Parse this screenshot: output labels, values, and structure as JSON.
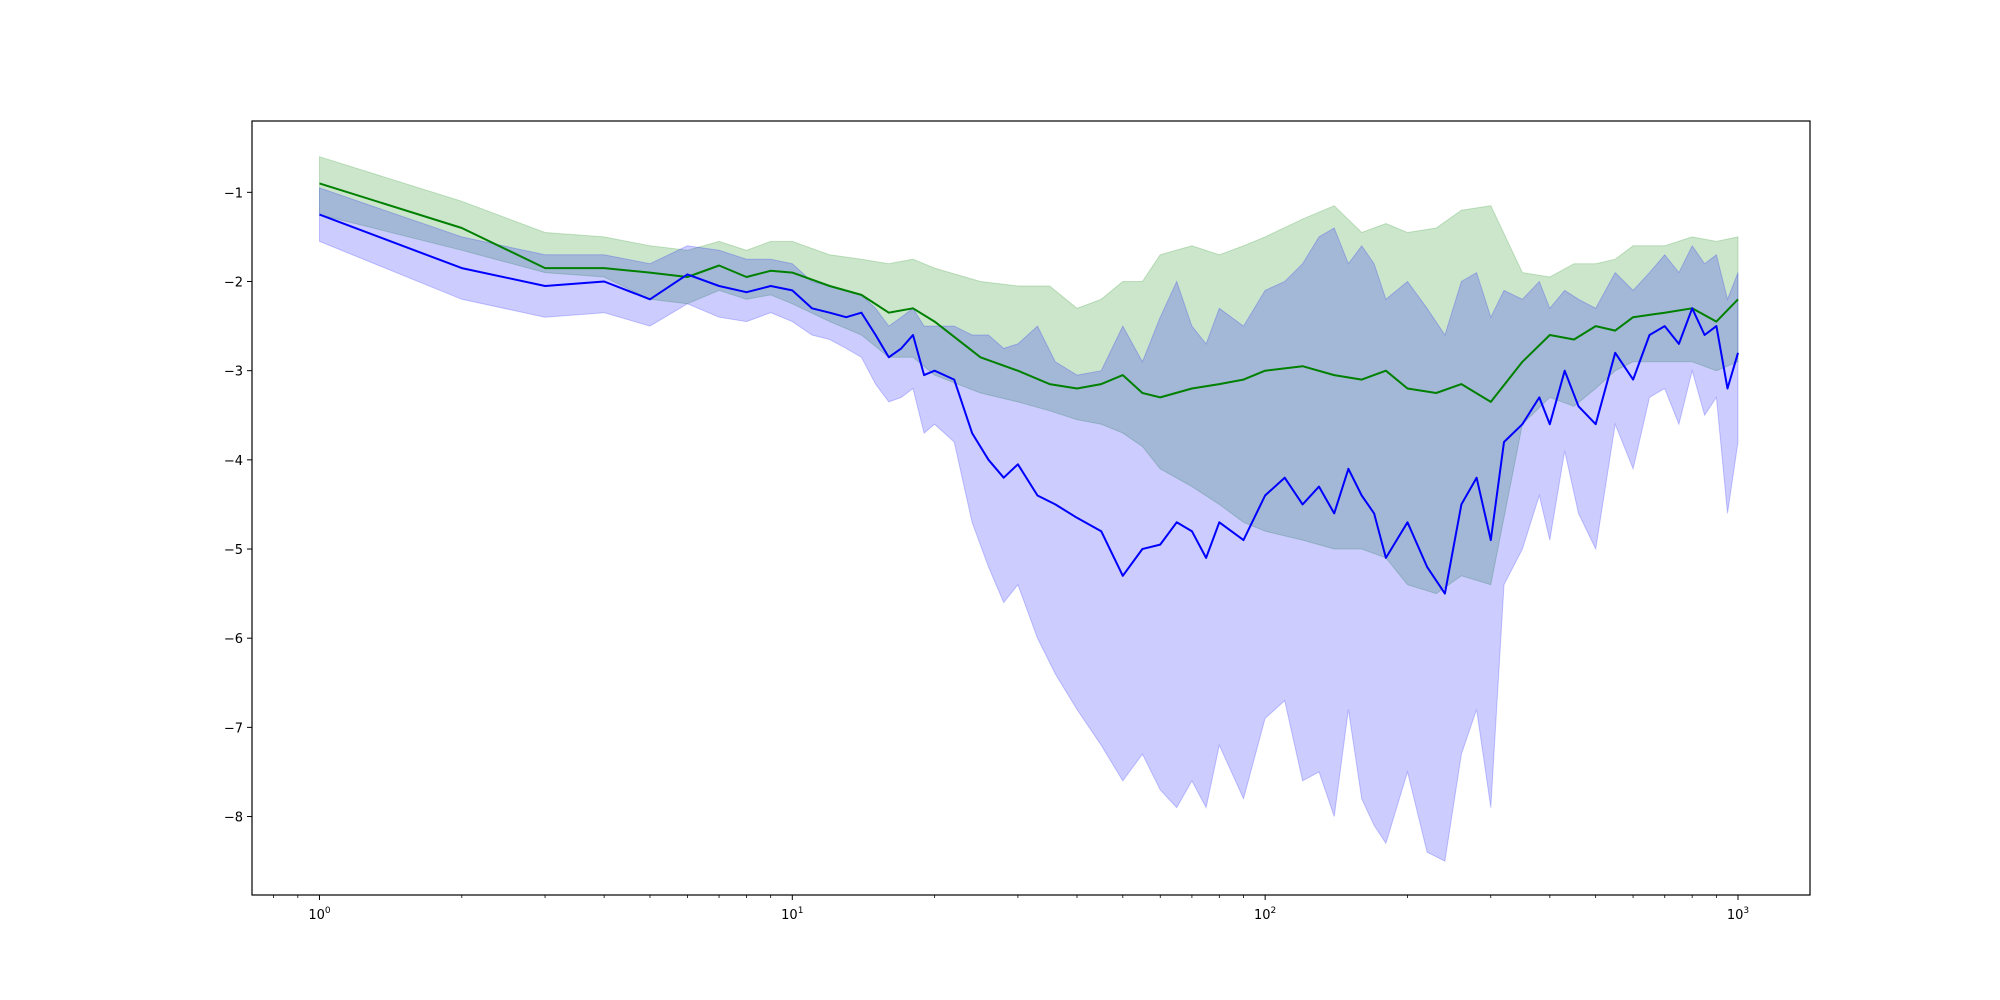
{
  "chart_data": {
    "type": "line",
    "title": "",
    "xlabel": "",
    "ylabel": "",
    "xscale": "log",
    "xlim": [
      0.72,
      1420
    ],
    "ylim": [
      -8.88,
      -0.2
    ],
    "grid": false,
    "xticks": [
      {
        "value": 1,
        "base": "10",
        "exp": "0"
      },
      {
        "value": 10,
        "base": "10",
        "exp": "1"
      },
      {
        "value": 100,
        "base": "10",
        "exp": "2"
      },
      {
        "value": 1000,
        "base": "10",
        "exp": "3"
      }
    ],
    "yticks": [
      {
        "value": -1,
        "label": "−1"
      },
      {
        "value": -2,
        "label": "−2"
      },
      {
        "value": -3,
        "label": "−3"
      },
      {
        "value": -4,
        "label": "−4"
      },
      {
        "value": -5,
        "label": "−5"
      },
      {
        "value": -6,
        "label": "−6"
      },
      {
        "value": -7,
        "label": "−7"
      },
      {
        "value": -8,
        "label": "−8"
      }
    ],
    "series": [
      {
        "color": "#008000",
        "band_color": "#008000",
        "x": [
          1,
          2,
          3,
          4,
          5,
          6,
          7,
          8,
          9,
          10,
          12,
          14,
          16,
          18,
          20,
          25,
          30,
          35,
          40,
          45,
          50,
          55,
          60,
          70,
          80,
          90,
          100,
          120,
          140,
          160,
          180,
          200,
          230,
          260,
          300,
          350,
          400,
          450,
          500,
          550,
          600,
          700,
          800,
          900,
          1000
        ],
        "y": [
          -0.9,
          -1.4,
          -1.85,
          -1.85,
          -1.9,
          -1.95,
          -1.82,
          -1.95,
          -1.88,
          -1.9,
          -2.05,
          -2.15,
          -2.35,
          -2.3,
          -2.45,
          -2.85,
          -3.0,
          -3.15,
          -3.2,
          -3.15,
          -3.05,
          -3.25,
          -3.3,
          -3.2,
          -3.15,
          -3.1,
          -3.0,
          -2.95,
          -3.05,
          -3.1,
          -3.0,
          -3.2,
          -3.25,
          -3.15,
          -3.35,
          -2.9,
          -2.6,
          -2.65,
          -2.5,
          -2.55,
          -2.4,
          -2.35,
          -2.3,
          -2.45,
          -2.2
        ],
        "upper": [
          -0.6,
          -1.1,
          -1.45,
          -1.5,
          -1.6,
          -1.65,
          -1.55,
          -1.65,
          -1.55,
          -1.55,
          -1.7,
          -1.75,
          -1.8,
          -1.75,
          -1.85,
          -2.0,
          -2.05,
          -2.05,
          -2.3,
          -2.2,
          -2.0,
          -2.0,
          -1.7,
          -1.6,
          -1.7,
          -1.6,
          -1.5,
          -1.3,
          -1.15,
          -1.45,
          -1.35,
          -1.45,
          -1.4,
          -1.2,
          -1.15,
          -1.9,
          -1.95,
          -1.8,
          -1.8,
          -1.75,
          -1.6,
          -1.6,
          -1.5,
          -1.55,
          -1.5
        ],
        "lower": [
          -1.25,
          -1.65,
          -1.9,
          -1.95,
          -2.2,
          -2.25,
          -2.1,
          -2.2,
          -2.15,
          -2.25,
          -2.45,
          -2.6,
          -2.85,
          -2.85,
          -3.05,
          -3.25,
          -3.35,
          -3.45,
          -3.55,
          -3.6,
          -3.7,
          -3.85,
          -4.1,
          -4.3,
          -4.5,
          -4.7,
          -4.8,
          -4.9,
          -5.0,
          -5.0,
          -5.1,
          -5.4,
          -5.5,
          -5.3,
          -5.4,
          -3.6,
          -3.3,
          -3.4,
          -3.2,
          -3.0,
          -2.9,
          -2.9,
          -2.9,
          -3.0,
          -2.9
        ]
      },
      {
        "color": "#0000ff",
        "band_color": "#0000ff",
        "x": [
          1,
          2,
          3,
          4,
          5,
          6,
          7,
          8,
          9,
          10,
          11,
          12,
          13,
          14,
          15,
          16,
          17,
          18,
          19,
          20,
          22,
          24,
          26,
          28,
          30,
          33,
          36,
          40,
          45,
          50,
          55,
          60,
          65,
          70,
          75,
          80,
          90,
          100,
          110,
          120,
          130,
          140,
          150,
          160,
          170,
          180,
          200,
          220,
          240,
          260,
          280,
          300,
          320,
          350,
          380,
          400,
          430,
          460,
          500,
          550,
          600,
          650,
          700,
          750,
          800,
          850,
          900,
          950,
          1000
        ],
        "y": [
          -1.25,
          -1.85,
          -2.05,
          -2.0,
          -2.2,
          -1.92,
          -2.05,
          -2.12,
          -2.05,
          -2.1,
          -2.3,
          -2.35,
          -2.4,
          -2.35,
          -2.6,
          -2.85,
          -2.75,
          -2.6,
          -3.05,
          -3.0,
          -3.1,
          -3.7,
          -4.0,
          -4.2,
          -4.05,
          -4.4,
          -4.5,
          -4.65,
          -4.8,
          -5.3,
          -5.0,
          -4.95,
          -4.7,
          -4.8,
          -5.1,
          -4.7,
          -4.9,
          -4.4,
          -4.2,
          -4.5,
          -4.3,
          -4.6,
          -4.1,
          -4.4,
          -4.6,
          -5.1,
          -4.7,
          -5.2,
          -5.5,
          -4.5,
          -4.2,
          -4.9,
          -3.8,
          -3.6,
          -3.3,
          -3.6,
          -3.0,
          -3.4,
          -3.6,
          -2.8,
          -3.1,
          -2.6,
          -2.5,
          -2.7,
          -2.3,
          -2.6,
          -2.5,
          -3.2,
          -2.8
        ],
        "upper": [
          -0.95,
          -1.5,
          -1.7,
          -1.7,
          -1.8,
          -1.6,
          -1.65,
          -1.75,
          -1.75,
          -1.8,
          -2.0,
          -2.05,
          -2.1,
          -2.15,
          -2.3,
          -2.5,
          -2.4,
          -2.3,
          -2.5,
          -2.5,
          -2.5,
          -2.6,
          -2.6,
          -2.75,
          -2.7,
          -2.5,
          -2.9,
          -3.05,
          -3.0,
          -2.5,
          -2.9,
          -2.4,
          -2.0,
          -2.5,
          -2.7,
          -2.3,
          -2.5,
          -2.1,
          -2.0,
          -1.8,
          -1.5,
          -1.4,
          -1.8,
          -1.6,
          -1.8,
          -2.2,
          -2.0,
          -2.3,
          -2.6,
          -2.0,
          -1.9,
          -2.4,
          -2.1,
          -2.2,
          -2.0,
          -2.3,
          -2.1,
          -2.2,
          -2.3,
          -1.9,
          -2.1,
          -1.9,
          -1.7,
          -1.9,
          -1.6,
          -1.8,
          -1.7,
          -2.2,
          -1.9
        ],
        "lower": [
          -1.55,
          -2.2,
          -2.4,
          -2.35,
          -2.5,
          -2.25,
          -2.4,
          -2.45,
          -2.35,
          -2.45,
          -2.6,
          -2.65,
          -2.75,
          -2.85,
          -3.15,
          -3.35,
          -3.3,
          -3.2,
          -3.7,
          -3.6,
          -3.8,
          -4.7,
          -5.2,
          -5.6,
          -5.4,
          -6.0,
          -6.4,
          -6.8,
          -7.2,
          -7.6,
          -7.3,
          -7.7,
          -7.9,
          -7.6,
          -7.9,
          -7.2,
          -7.8,
          -6.9,
          -6.7,
          -7.6,
          -7.5,
          -8.0,
          -6.8,
          -7.8,
          -8.1,
          -8.3,
          -7.5,
          -8.4,
          -8.5,
          -7.3,
          -6.8,
          -7.9,
          -5.4,
          -5.0,
          -4.4,
          -4.9,
          -3.9,
          -4.6,
          -5.0,
          -3.6,
          -4.1,
          -3.3,
          -3.2,
          -3.6,
          -3.0,
          -3.5,
          -3.3,
          -4.6,
          -3.8
        ]
      }
    ]
  }
}
